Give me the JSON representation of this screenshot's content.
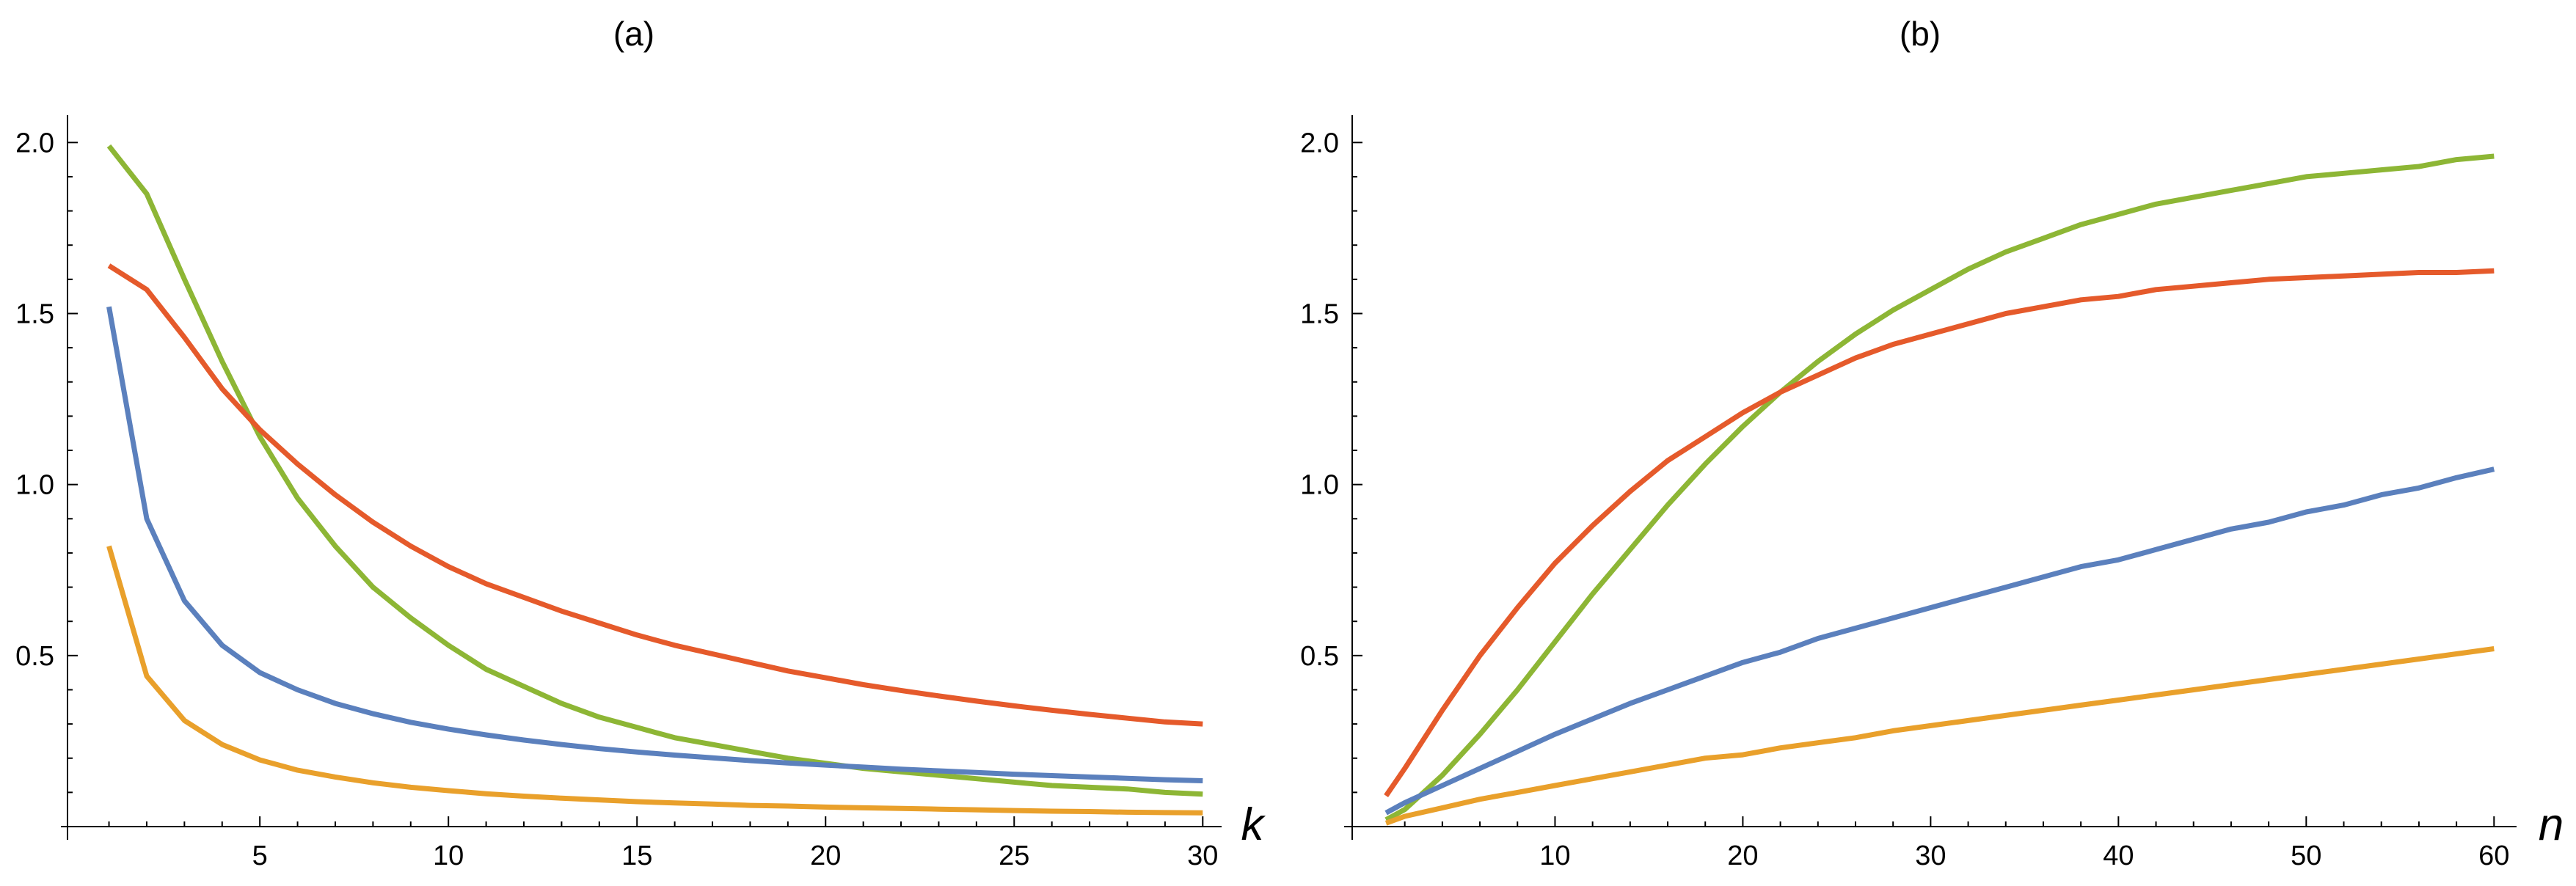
{
  "chart_data": [
    {
      "id": "a",
      "type": "line",
      "title": "(a)",
      "xlabel": "k",
      "ylabel": "",
      "xlim": [
        -0.1,
        30.5
      ],
      "ylim": [
        0,
        2.08
      ],
      "xticks": [
        5,
        10,
        15,
        20,
        25,
        30
      ],
      "xtick_labels": [
        "5",
        "10",
        "15",
        "20",
        "25",
        "30"
      ],
      "yticks": [
        0.5,
        1.0,
        1.5,
        2.0
      ],
      "ytick_labels": [
        "0.5",
        "1.0",
        "1.5",
        "2.0"
      ],
      "x": [
        1,
        2,
        3,
        4,
        5,
        6,
        7,
        8,
        9,
        10,
        11,
        12,
        13,
        14,
        15,
        16,
        17,
        18,
        19,
        20,
        21,
        22,
        23,
        24,
        25,
        26,
        27,
        28,
        29,
        30
      ],
      "series": [
        {
          "name": "green",
          "color": "#8db635",
          "values": [
            1.99,
            1.85,
            1.6,
            1.36,
            1.14,
            0.96,
            0.82,
            0.7,
            0.61,
            0.53,
            0.46,
            0.41,
            0.36,
            0.32,
            0.29,
            0.26,
            0.24,
            0.22,
            0.2,
            0.185,
            0.17,
            0.16,
            0.15,
            0.14,
            0.13,
            0.12,
            0.115,
            0.11,
            0.1,
            0.095
          ]
        },
        {
          "name": "red",
          "color": "#e55a2b",
          "values": [
            1.64,
            1.57,
            1.43,
            1.28,
            1.16,
            1.06,
            0.97,
            0.89,
            0.82,
            0.76,
            0.71,
            0.67,
            0.63,
            0.595,
            0.56,
            0.53,
            0.505,
            0.48,
            0.455,
            0.435,
            0.415,
            0.398,
            0.382,
            0.367,
            0.353,
            0.34,
            0.328,
            0.317,
            0.306,
            0.3
          ]
        },
        {
          "name": "blue",
          "color": "#5b80bd",
          "values": [
            1.52,
            0.9,
            0.66,
            0.53,
            0.45,
            0.4,
            0.36,
            0.33,
            0.305,
            0.285,
            0.268,
            0.253,
            0.24,
            0.228,
            0.218,
            0.209,
            0.201,
            0.193,
            0.186,
            0.18,
            0.174,
            0.168,
            0.163,
            0.158,
            0.153,
            0.149,
            0.145,
            0.141,
            0.137,
            0.134
          ]
        },
        {
          "name": "orange",
          "color": "#e9a02b",
          "values": [
            0.82,
            0.44,
            0.31,
            0.24,
            0.195,
            0.165,
            0.145,
            0.128,
            0.115,
            0.105,
            0.096,
            0.089,
            0.083,
            0.078,
            0.073,
            0.069,
            0.066,
            0.062,
            0.06,
            0.057,
            0.055,
            0.053,
            0.051,
            0.049,
            0.047,
            0.045,
            0.044,
            0.042,
            0.041,
            0.04
          ]
        }
      ]
    },
    {
      "id": "b",
      "type": "line",
      "title": "(b)",
      "xlabel": "n",
      "ylabel": "",
      "xlim": [
        -0.8,
        61.2
      ],
      "ylim": [
        0,
        2.08
      ],
      "xticks": [
        10,
        20,
        30,
        40,
        50,
        60
      ],
      "xtick_labels": [
        "10",
        "20",
        "30",
        "40",
        "50",
        "60"
      ],
      "yticks": [
        0.5,
        1.0,
        1.5,
        2.0
      ],
      "ytick_labels": [
        "0.5",
        "1.0",
        "1.5",
        "2.0"
      ],
      "x": [
        1,
        2,
        4,
        6,
        8,
        10,
        12,
        14,
        16,
        18,
        20,
        22,
        24,
        26,
        28,
        30,
        32,
        34,
        36,
        38,
        40,
        42,
        44,
        46,
        48,
        50,
        52,
        54,
        56,
        58,
        60
      ],
      "series": [
        {
          "name": "green",
          "color": "#8db635",
          "values": [
            0.02,
            0.05,
            0.15,
            0.27,
            0.4,
            0.54,
            0.68,
            0.81,
            0.94,
            1.06,
            1.17,
            1.27,
            1.36,
            1.44,
            1.51,
            1.57,
            1.63,
            1.68,
            1.72,
            1.76,
            1.79,
            1.82,
            1.84,
            1.86,
            1.88,
            1.9,
            1.91,
            1.92,
            1.93,
            1.95,
            1.96
          ]
        },
        {
          "name": "red",
          "color": "#e55a2b",
          "values": [
            0.09,
            0.17,
            0.34,
            0.5,
            0.64,
            0.77,
            0.88,
            0.98,
            1.07,
            1.14,
            1.21,
            1.27,
            1.32,
            1.37,
            1.41,
            1.44,
            1.47,
            1.5,
            1.52,
            1.54,
            1.55,
            1.57,
            1.58,
            1.59,
            1.6,
            1.605,
            1.61,
            1.615,
            1.62,
            1.62,
            1.625
          ]
        },
        {
          "name": "blue",
          "color": "#5b80bd",
          "values": [
            0.04,
            0.07,
            0.12,
            0.17,
            0.22,
            0.27,
            0.315,
            0.36,
            0.4,
            0.44,
            0.48,
            0.51,
            0.55,
            0.58,
            0.61,
            0.64,
            0.67,
            0.7,
            0.73,
            0.76,
            0.78,
            0.81,
            0.84,
            0.87,
            0.89,
            0.92,
            0.94,
            0.97,
            0.99,
            1.02,
            1.045
          ]
        },
        {
          "name": "orange",
          "color": "#e9a02b",
          "values": [
            0.01,
            0.03,
            0.055,
            0.08,
            0.1,
            0.12,
            0.14,
            0.16,
            0.18,
            0.2,
            0.21,
            0.23,
            0.245,
            0.26,
            0.28,
            0.295,
            0.31,
            0.325,
            0.34,
            0.355,
            0.37,
            0.385,
            0.4,
            0.415,
            0.43,
            0.445,
            0.46,
            0.475,
            0.49,
            0.505,
            0.52
          ]
        }
      ]
    }
  ]
}
